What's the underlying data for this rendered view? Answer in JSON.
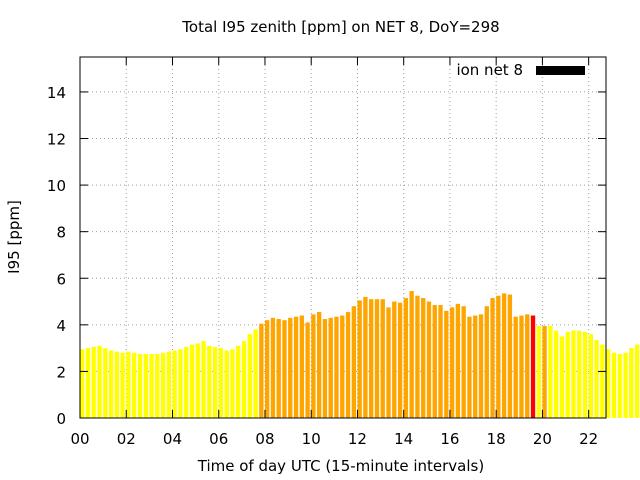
{
  "chart_data": {
    "type": "bar",
    "title": "Total I95 zenith [ppm] on NET 8, DoY=298",
    "xlabel": "Time of day UTC (15-minute intervals)",
    "ylabel": "I95 [ppm]",
    "xlim": [
      0,
      22.75
    ],
    "ylim": [
      0,
      15.5
    ],
    "x_ticks": [
      "00",
      "02",
      "04",
      "06",
      "08",
      "10",
      "12",
      "14",
      "16",
      "18",
      "20",
      "22"
    ],
    "y_ticks": [
      "0",
      "2",
      "4",
      "6",
      "8",
      "10",
      "12",
      "14"
    ],
    "grid": true,
    "legend": {
      "position": "top-right",
      "label": "ion net 8",
      "color": "#000000"
    },
    "colors": {
      "low": "#ffff00",
      "mid": "#ffa500",
      "high": "#ff0000"
    },
    "interval_hours": 0.25,
    "series": [
      {
        "values": [
          2.95,
          3.0,
          3.05,
          3.1,
          3.0,
          2.9,
          2.85,
          2.8,
          2.85,
          2.8,
          2.75,
          2.75,
          2.75,
          2.75,
          2.8,
          2.85,
          2.9,
          2.95,
          3.05,
          3.15,
          3.2,
          3.3,
          3.1,
          3.05,
          3.0,
          2.9,
          2.95,
          3.1,
          3.3,
          3.6,
          3.8,
          4.05,
          4.2,
          4.3,
          4.25,
          4.2,
          4.3,
          4.35,
          4.4,
          4.1,
          4.45,
          4.55,
          4.25,
          4.3,
          4.35,
          4.4,
          4.55,
          4.8,
          5.05,
          5.2,
          5.1,
          5.1,
          5.1,
          4.75,
          5.0,
          4.95,
          5.15,
          5.45,
          5.25,
          5.15,
          5.0,
          4.85,
          4.85,
          4.6,
          4.75,
          4.9,
          4.8,
          4.35,
          4.4,
          4.45,
          4.8,
          5.15,
          5.25,
          5.35,
          5.3,
          4.35,
          4.4,
          4.45,
          4.4,
          3.95,
          3.95,
          3.95,
          3.75,
          3.5,
          3.7,
          3.75,
          3.75,
          3.7,
          3.6,
          3.35,
          3.15,
          2.95,
          2.8,
          2.75,
          2.8,
          3.0,
          3.15,
          3.05,
          2.95,
          3.0
        ],
        "colors": [
          "#ffff00",
          "#ffff00",
          "#ffff00",
          "#ffff00",
          "#ffff00",
          "#ffff00",
          "#ffff00",
          "#ffff00",
          "#ffff00",
          "#ffff00",
          "#ffff00",
          "#ffff00",
          "#ffff00",
          "#ffff00",
          "#ffff00",
          "#ffff00",
          "#ffff00",
          "#ffff00",
          "#ffff00",
          "#ffff00",
          "#ffff00",
          "#ffff00",
          "#ffff00",
          "#ffff00",
          "#ffff00",
          "#ffff00",
          "#ffff00",
          "#ffff00",
          "#ffff00",
          "#ffff00",
          "#ffff00",
          "#ffa500",
          "#ffa500",
          "#ffa500",
          "#ffa500",
          "#ffa500",
          "#ffa500",
          "#ffa500",
          "#ffa500",
          "#ffa500",
          "#ffa500",
          "#ffa500",
          "#ffa500",
          "#ffa500",
          "#ffa500",
          "#ffa500",
          "#ffa500",
          "#ffa500",
          "#ffa500",
          "#ffa500",
          "#ffa500",
          "#ffa500",
          "#ffa500",
          "#ffa500",
          "#ffa500",
          "#ffa500",
          "#ffa500",
          "#ffa500",
          "#ffa500",
          "#ffa500",
          "#ffa500",
          "#ffa500",
          "#ffa500",
          "#ffa500",
          "#ffa500",
          "#ffa500",
          "#ffa500",
          "#ffa500",
          "#ffa500",
          "#ffa500",
          "#ffa500",
          "#ffa500",
          "#ffa500",
          "#ffa500",
          "#ffa500",
          "#ffa500",
          "#ffa500",
          "#ffa500",
          "#ff0000",
          "#ffff00",
          "#ffa500",
          "#ffff00",
          "#ffff00",
          "#ffff00",
          "#ffff00",
          "#ffff00",
          "#ffff00",
          "#ffff00",
          "#ffff00",
          "#ffff00",
          "#ffff00",
          "#ffff00",
          "#ffff00",
          "#ffff00",
          "#ffff00",
          "#ffff00",
          "#ffff00",
          "#ffff00",
          "#ffff00",
          "#ffff00"
        ]
      }
    ]
  }
}
